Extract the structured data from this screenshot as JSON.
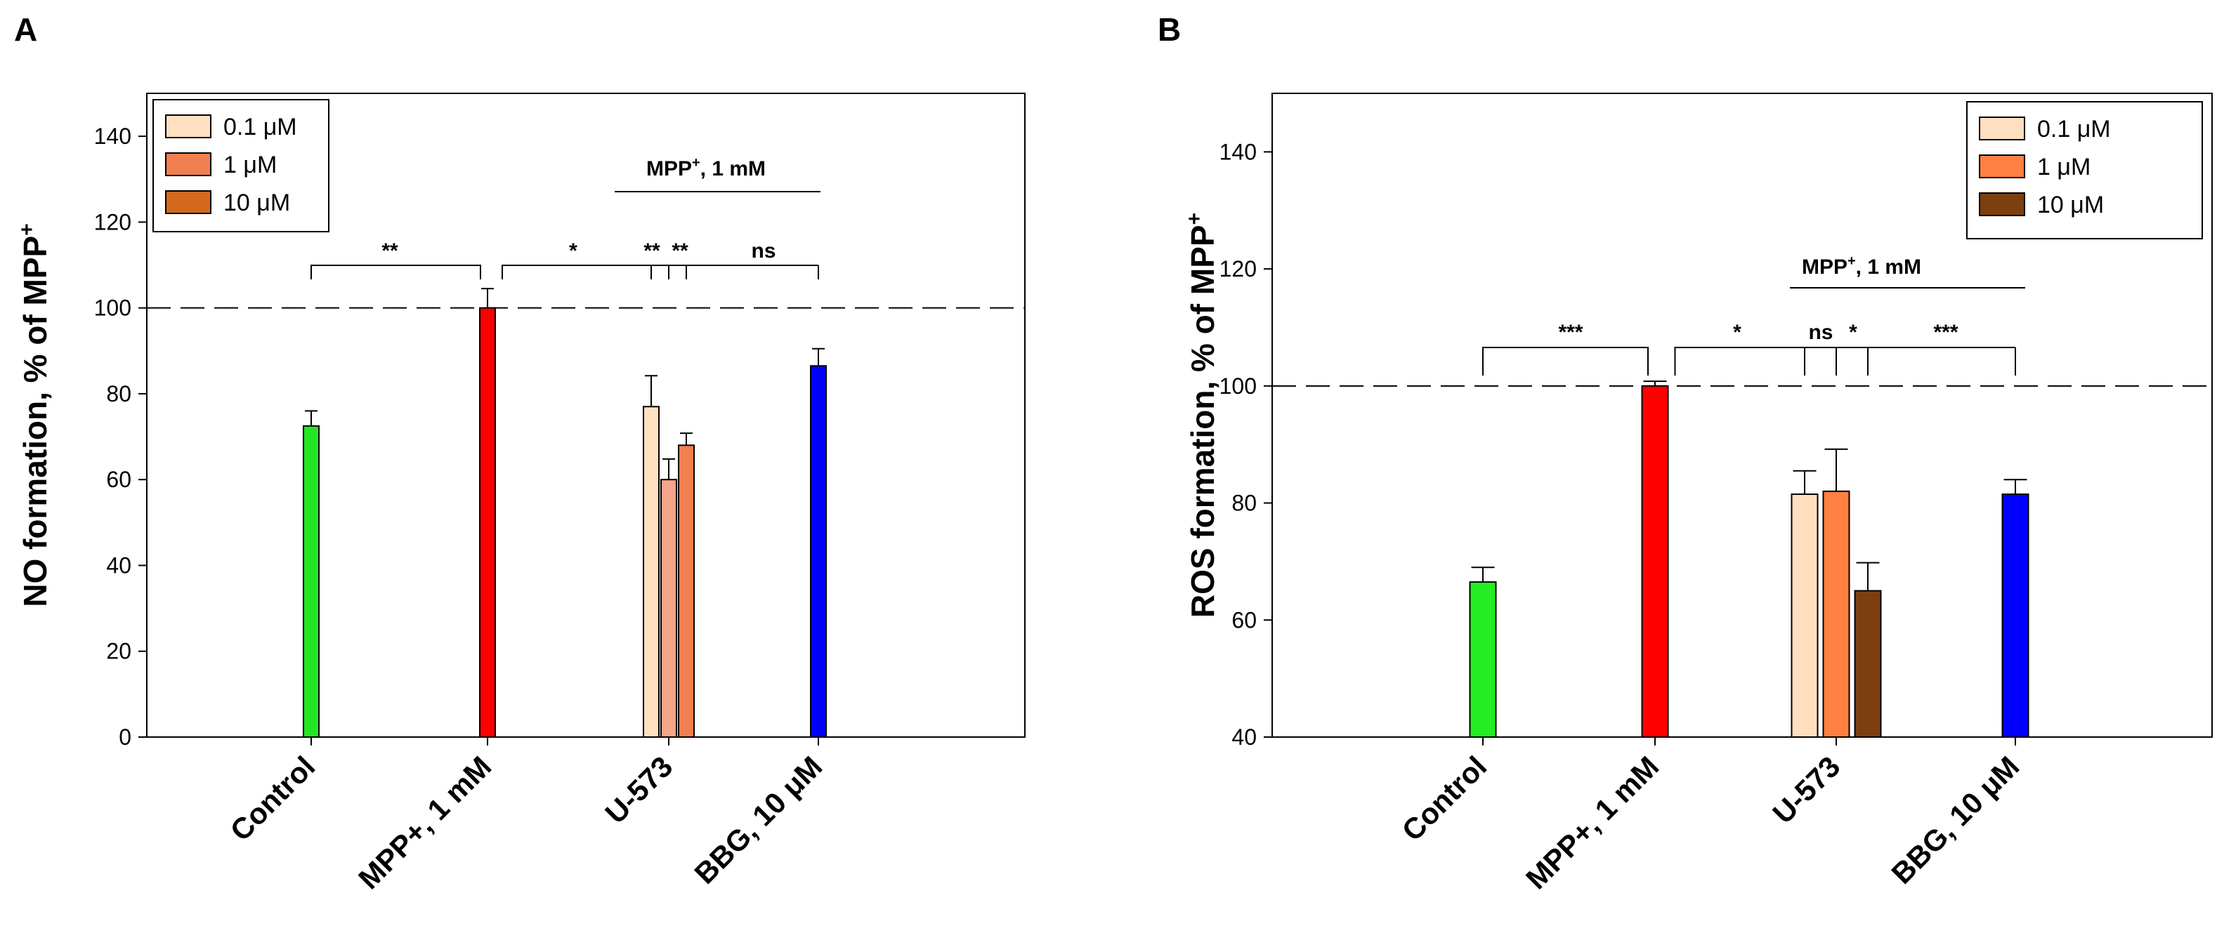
{
  "chart_data": [
    {
      "panel": "A",
      "type": "bar",
      "ylabel": "NO formation, % of MPP",
      "ylabel_sup": "+",
      "ylim": [
        0,
        150
      ],
      "yticks": [
        0,
        20,
        40,
        60,
        80,
        100,
        120,
        140
      ],
      "reference_line": 100,
      "categories": [
        "Control",
        "MPP+, 1 mM",
        "U-573",
        "BBG, 10 μM"
      ],
      "bars": [
        {
          "category": 0,
          "value": 72.5,
          "error": 3.5,
          "color": "#22e622"
        },
        {
          "category": 1,
          "value": 100,
          "error": 4.5,
          "color": "#ff0000"
        },
        {
          "category": 2,
          "value": 77,
          "error": 7.2,
          "color": "#ffe0c0",
          "series": 0
        },
        {
          "category": 2,
          "value": 60,
          "error": 4.8,
          "color": "#f4a58a",
          "series": 1
        },
        {
          "category": 2,
          "value": 68,
          "error": 2.8,
          "color": "#f08050",
          "series": 2
        },
        {
          "category": 3,
          "value": 86.5,
          "error": 4.0,
          "color": "#0000ff"
        }
      ],
      "legend": {
        "position": "top-left",
        "items": [
          {
            "label": "0.1 μM",
            "color": "#ffe0c0"
          },
          {
            "label": "1 μM",
            "color": "#f08050"
          },
          {
            "label": "10 μM",
            "color": "#d2691e"
          }
        ]
      },
      "group_label": {
        "text": "MPP",
        "sup": "+",
        "rest": ", 1 mM"
      },
      "significance": [
        {
          "from": "Control",
          "to": "MPP+, 1 mM",
          "label": "**"
        },
        {
          "from": "MPP+, 1 mM",
          "to": "U-573 0.1 μM",
          "label": "*"
        },
        {
          "from": "MPP+, 1 mM",
          "to": "U-573 1 μM",
          "label": "**"
        },
        {
          "from": "MPP+, 1 mM",
          "to": "U-573 10 μM",
          "label": "**"
        },
        {
          "from": "MPP+, 1 mM",
          "to": "BBG, 10 μM",
          "label": "ns"
        }
      ]
    },
    {
      "panel": "B",
      "type": "bar",
      "ylabel": "ROS formation, % of MPP",
      "ylabel_sup": "+",
      "ylim": [
        40,
        150
      ],
      "yticks": [
        40,
        60,
        80,
        100,
        120,
        140
      ],
      "reference_line": 100,
      "categories": [
        "Control",
        "MPP+, 1 mM",
        "U-573",
        "BBG, 10 μM"
      ],
      "bars": [
        {
          "category": 0,
          "value": 66.5,
          "error": 2.5,
          "color": "#22ee22"
        },
        {
          "category": 1,
          "value": 100,
          "error": 0.8,
          "color": "#ff0000"
        },
        {
          "category": 2,
          "value": 81.5,
          "error": 4.0,
          "color": "#ffdfc0",
          "series": 0
        },
        {
          "category": 2,
          "value": 82,
          "error": 7.2,
          "color": "#ff8040",
          "series": 1
        },
        {
          "category": 2,
          "value": 65,
          "error": 4.8,
          "color": "#7b3f10",
          "series": 2
        },
        {
          "category": 3,
          "value": 81.5,
          "error": 2.5,
          "color": "#0000ff"
        }
      ],
      "legend": {
        "position": "top-right",
        "items": [
          {
            "label": "0.1 μM",
            "color": "#ffdfc0"
          },
          {
            "label": "1 μM",
            "color": "#ff8040"
          },
          {
            "label": "10 μM",
            "color": "#7b3f10"
          }
        ]
      },
      "group_label": {
        "text": "MPP",
        "sup": "+",
        "rest": ", 1 mM"
      },
      "significance": [
        {
          "from": "Control",
          "to": "MPP+, 1 mM",
          "label": "***"
        },
        {
          "from": "MPP+, 1 mM",
          "to": "U-573 0.1 μM",
          "label": "*"
        },
        {
          "from": "MPP+, 1 mM",
          "to": "U-573 1 μM",
          "label": "ns"
        },
        {
          "from": "MPP+, 1 mM",
          "to": "U-573 10 μM",
          "label": "*"
        },
        {
          "from": "MPP+, 1 mM",
          "to": "BBG, 10 μM",
          "label": "***"
        }
      ]
    }
  ]
}
